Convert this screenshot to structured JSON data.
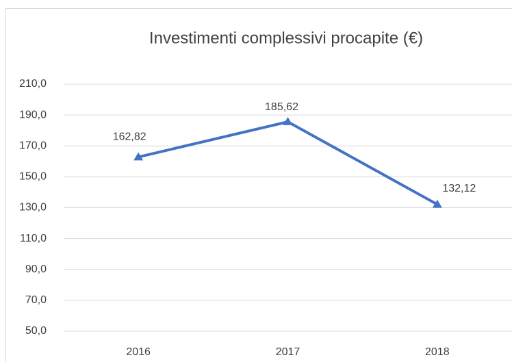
{
  "chart_data": {
    "type": "line",
    "title": "Investimenti complessivi procapite (€)",
    "categories": [
      "2016",
      "2017",
      "2018"
    ],
    "series": [
      {
        "color": "#4472c4",
        "values": [
          162.82,
          185.62,
          132.12
        ],
        "value_labels": [
          "162,82",
          "185,62",
          "132,12"
        ]
      }
    ],
    "ylim": [
      50,
      210
    ],
    "yticks": [
      {
        "value": 50,
        "label": "50,0"
      },
      {
        "value": 70,
        "label": "70,0"
      },
      {
        "value": 90,
        "label": "90,0"
      },
      {
        "value": 110,
        "label": "110,0"
      },
      {
        "value": 130,
        "label": "130,0"
      },
      {
        "value": 150,
        "label": "150,0"
      },
      {
        "value": 170,
        "label": "170,0"
      },
      {
        "value": 190,
        "label": "190,0"
      },
      {
        "value": 210,
        "label": "210,0"
      }
    ],
    "grid": true
  }
}
